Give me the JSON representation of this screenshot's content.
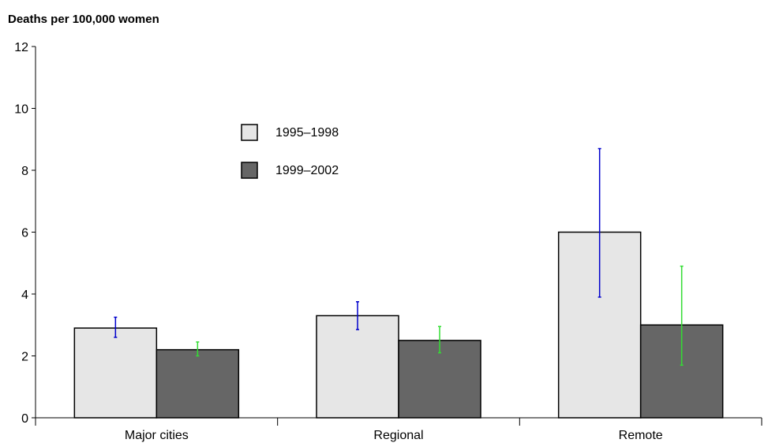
{
  "chart_data": {
    "type": "bar",
    "title": "",
    "xlabel": "",
    "ylabel": "Deaths per 100,000 women",
    "categories": [
      "Major cities",
      "Regional",
      "Remote"
    ],
    "ylim": [
      0,
      12
    ],
    "yticks": [
      0,
      2,
      4,
      6,
      8,
      10,
      12
    ],
    "grid": false,
    "legend_position": "upper-middle",
    "series": [
      {
        "name": "1995–1998",
        "values": [
          2.9,
          3.3,
          6.0
        ],
        "error_low": [
          2.6,
          2.85,
          3.9
        ],
        "error_high": [
          3.25,
          3.75,
          8.7
        ],
        "color": "#e6e6e6",
        "error_color": "#0000cc"
      },
      {
        "name": "1999–2002",
        "values": [
          2.2,
          2.5,
          3.0
        ],
        "error_low": [
          2.0,
          2.1,
          1.7
        ],
        "error_high": [
          2.45,
          2.95,
          4.9
        ],
        "color": "#666666",
        "error_color": "#33dd33"
      }
    ]
  }
}
